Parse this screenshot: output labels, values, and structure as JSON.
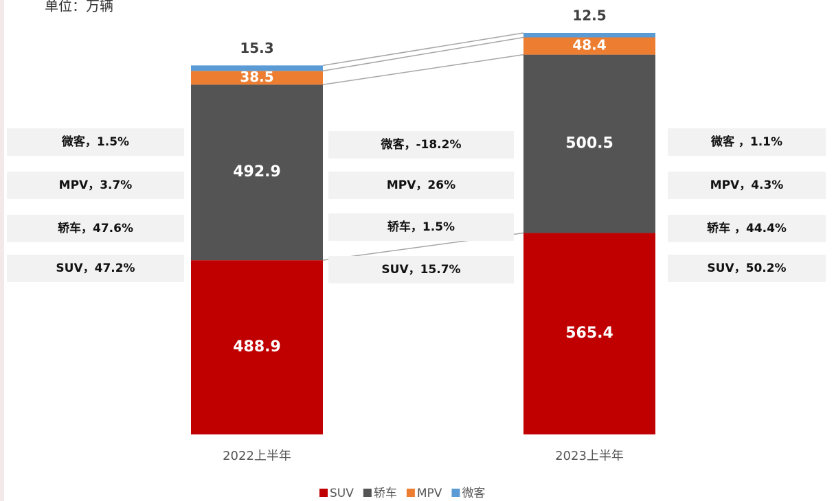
{
  "chart_data": {
    "type": "stacked_bar",
    "subtitle": "单位：万辆",
    "categories": [
      "2022上半年",
      "2023上半年"
    ],
    "series": [
      {
        "name": "SUV",
        "color": "#c00000",
        "values": [
          488.9,
          565.4
        ]
      },
      {
        "name": "轿车",
        "color": "#545454",
        "values": [
          492.9,
          500.5
        ]
      },
      {
        "name": "MPV",
        "color": "#ed7d31",
        "values": [
          38.5,
          48.4
        ]
      },
      {
        "name": "微客",
        "color": "#5b9bd5",
        "values": [
          15.3,
          12.5
        ]
      }
    ],
    "annotations": [
      [
        "微客，1.5%",
        "MPV，3.7%",
        "轿车，47.6%",
        "SUV，47.2%"
      ],
      [
        "微客，-18.2%",
        "MPV，26%",
        "轿车，1.5%",
        "SUV，15.7%"
      ],
      [
        "微客 ，1.1%",
        "MPV，4.3%",
        "轿车 ，44.4%",
        "SUV，50.2%"
      ]
    ],
    "legend": "bottom"
  }
}
